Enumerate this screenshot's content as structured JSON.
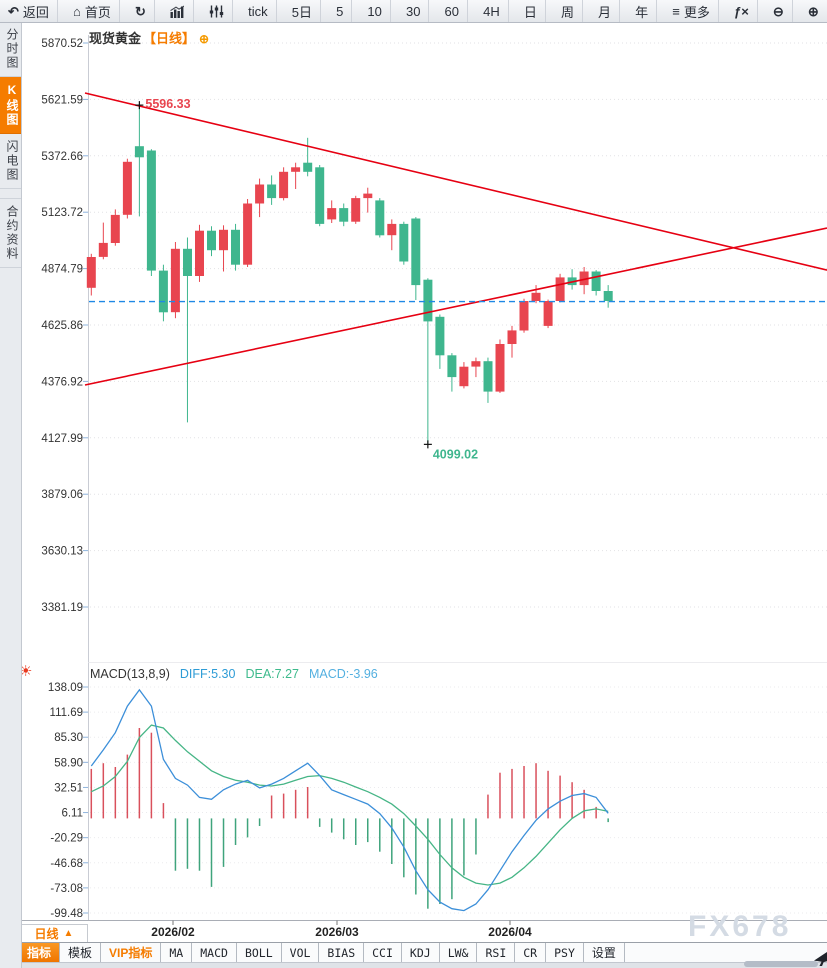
{
  "app": {
    "watermark": "FX678"
  },
  "top_toolbar": {
    "items": [
      {
        "name": "back",
        "icon": "back-arrow",
        "label": "返回"
      },
      {
        "name": "home",
        "icon": "home",
        "label": "首页"
      },
      {
        "name": "refresh",
        "icon": "refresh",
        "label": ""
      },
      {
        "name": "chart-type-bars",
        "icon": "bar-chart",
        "label": ""
      },
      {
        "name": "chart-type-candles",
        "icon": "candles",
        "label": ""
      },
      {
        "name": "interval-tick",
        "icon": "",
        "label": "tick"
      },
      {
        "name": "interval-5d",
        "icon": "",
        "label": "5日"
      },
      {
        "name": "interval-5",
        "icon": "",
        "label": "5"
      },
      {
        "name": "interval-10",
        "icon": "",
        "label": "10"
      },
      {
        "name": "interval-30",
        "icon": "",
        "label": "30"
      },
      {
        "name": "interval-60",
        "icon": "",
        "label": "60"
      },
      {
        "name": "interval-4h",
        "icon": "",
        "label": "4H"
      },
      {
        "name": "interval-day",
        "icon": "",
        "label": "日"
      },
      {
        "name": "interval-week",
        "icon": "",
        "label": "周"
      },
      {
        "name": "interval-month",
        "icon": "",
        "label": "月"
      },
      {
        "name": "interval-year",
        "icon": "",
        "label": "年"
      },
      {
        "name": "more",
        "icon": "more",
        "label": "更多"
      },
      {
        "name": "fx-functions",
        "icon": "fx",
        "label": ""
      },
      {
        "name": "zoom-out",
        "icon": "zoom-out",
        "label": ""
      },
      {
        "name": "zoom-in",
        "icon": "zoom-in",
        "label": ""
      }
    ]
  },
  "sidebar": {
    "items": [
      {
        "id": "time-share-chart",
        "label": "分时图",
        "active": false
      },
      {
        "id": "kline-chart",
        "label": "K线图",
        "active": true
      },
      {
        "id": "lightning-chart",
        "label": "闪电图",
        "active": false
      },
      {
        "id": "contract-info",
        "label": "合约资料",
        "active": false,
        "gap": true
      }
    ]
  },
  "chart_header": {
    "title": "现货黄金",
    "period_tag": "【日线】",
    "add_icon": "circle-plus"
  },
  "macd_header": {
    "name": "MACD(13,8,9)",
    "diff": "DIFF:5.30",
    "dea": "DEA:7.27",
    "macd": "MACD:-3.96"
  },
  "bottom_bar": {
    "period_selector": {
      "label": "日线",
      "icon": "triangle-up"
    },
    "tabs": [
      {
        "label": "指标",
        "active": true
      },
      {
        "label": "模板"
      },
      {
        "label": "VIP指标",
        "vip": true
      },
      {
        "label": "MA",
        "mono": true
      },
      {
        "label": "MACD",
        "mono": true
      },
      {
        "label": "BOLL",
        "mono": true
      },
      {
        "label": "VOL",
        "mono": true
      },
      {
        "label": "BIAS",
        "mono": true
      },
      {
        "label": "CCI",
        "mono": true
      },
      {
        "label": "KDJ",
        "mono": true
      },
      {
        "label": "LW&",
        "mono": true
      },
      {
        "label": "RSI",
        "mono": true
      },
      {
        "label": "CR",
        "mono": true
      },
      {
        "label": "PSY",
        "mono": true
      },
      {
        "label": "设置"
      }
    ]
  },
  "chart_data": [
    {
      "type": "candlestick",
      "title": "现货黄金 日线",
      "y_ticks": [
        "5870.52",
        "5621.59",
        "5372.66",
        "5123.72",
        "4874.79",
        "4625.86",
        "4376.92",
        "4127.99",
        "3879.06",
        "3630.13",
        "3381.19"
      ],
      "x_labels": [
        {
          "text": "2026/02",
          "x": 173
        },
        {
          "text": "2026/03",
          "x": 337
        },
        {
          "text": "2026/04",
          "x": 510
        }
      ],
      "candles_ohlc": [
        [
          4790,
          4940,
          4756,
          4926
        ],
        [
          4926,
          5078,
          4916,
          4988
        ],
        [
          4988,
          5136,
          4976,
          5112
        ],
        [
          5112,
          5360,
          5096,
          5346
        ],
        [
          5415,
          5596.33,
          5105,
          5366
        ],
        [
          5396,
          5402,
          4842,
          4866
        ],
        [
          4866,
          4892,
          4642,
          4682
        ],
        [
          4682,
          4992,
          4656,
          4962
        ],
        [
          4962,
          5012,
          4196,
          4842
        ],
        [
          4842,
          5068,
          4816,
          5042
        ],
        [
          5042,
          5062,
          4930,
          4956
        ],
        [
          4956,
          5066,
          4862,
          5046
        ],
        [
          5046,
          5072,
          4866,
          4892
        ],
        [
          4892,
          5182,
          4882,
          5162
        ],
        [
          5162,
          5272,
          5102,
          5246
        ],
        [
          5246,
          5286,
          5156,
          5186
        ],
        [
          5186,
          5322,
          5176,
          5302
        ],
        [
          5302,
          5342,
          5226,
          5322
        ],
        [
          5342,
          5452,
          5282,
          5302
        ],
        [
          5322,
          5332,
          5062,
          5072
        ],
        [
          5092,
          5176,
          5076,
          5142
        ],
        [
          5142,
          5162,
          5062,
          5082
        ],
        [
          5082,
          5196,
          5072,
          5186
        ],
        [
          5186,
          5232,
          5122,
          5206
        ],
        [
          5176,
          5186,
          5012,
          5022
        ],
        [
          5022,
          5092,
          4956,
          5072
        ],
        [
          5072,
          5082,
          4892,
          4906
        ],
        [
          5096,
          5102,
          4736,
          4802
        ],
        [
          4826,
          4832,
          4099.02,
          4642
        ],
        [
          4662,
          4672,
          4432,
          4492
        ],
        [
          4492,
          4502,
          4332,
          4396
        ],
        [
          4356,
          4462,
          4346,
          4442
        ],
        [
          4442,
          4482,
          4396,
          4466
        ],
        [
          4466,
          4482,
          4282,
          4332
        ],
        [
          4332,
          4562,
          4326,
          4542
        ],
        [
          4542,
          4622,
          4482,
          4602
        ],
        [
          4602,
          4742,
          4592,
          4732
        ],
        [
          4732,
          4802,
          4722,
          4768
        ],
        [
          4622,
          4738,
          4612,
          4732
        ],
        [
          4732,
          4852,
          4726,
          4836
        ],
        [
          4836,
          4872,
          4782,
          4802
        ],
        [
          4802,
          4882,
          4762,
          4862
        ],
        [
          4862,
          4868,
          4756,
          4776
        ],
        [
          4776,
          4802,
          4702,
          4732
        ]
      ],
      "high_annotation": {
        "text": "5596.33",
        "index": 4
      },
      "low_annotation": {
        "text": "4099.02",
        "index": 28
      },
      "current_price_line": 4729,
      "trend_lines": [
        {
          "from_price": 5650,
          "to_price": 4868
        },
        {
          "from_price": 4361,
          "to_price": 5054
        }
      ],
      "colors": {
        "up": "#e8454f",
        "down": "#3fb68e",
        "trend": "#e60012",
        "price_line": "#1e88e5"
      }
    },
    {
      "type": "macd",
      "params": "(13,8,9)",
      "y_ticks": [
        "138.09",
        "111.69",
        "85.30",
        "58.90",
        "32.51",
        "6.11",
        "-20.29",
        "-46.68",
        "-73.08",
        "-99.48"
      ],
      "diff": [
        55,
        72,
        90,
        118,
        135,
        118,
        62,
        42,
        35,
        22,
        20,
        30,
        36,
        40,
        32,
        36,
        42,
        50,
        58,
        45,
        30,
        25,
        20,
        15,
        5,
        -10,
        -30,
        -55,
        -75,
        -88,
        -95,
        -97,
        -90,
        -75,
        -55,
        -35,
        -18,
        -2,
        10,
        18,
        24,
        26,
        22,
        5.3
      ],
      "dea": [
        28,
        34,
        44,
        60,
        85,
        98,
        95,
        82,
        70,
        60,
        50,
        44,
        40,
        38,
        35,
        34,
        36,
        40,
        44,
        45,
        42,
        38,
        33,
        28,
        22,
        15,
        5,
        -8,
        -22,
        -38,
        -52,
        -62,
        -68,
        -70,
        -68,
        -62,
        -52,
        -40,
        -26,
        -12,
        0,
        8,
        10,
        7.27
      ],
      "histogram": [
        52,
        58,
        54,
        67,
        95,
        90,
        16,
        -55,
        -53,
        -55,
        -72,
        -51,
        -28,
        -20,
        -8,
        24,
        26,
        30,
        33,
        -9,
        -15,
        -22,
        -28,
        -25,
        -35,
        -48,
        -62,
        -80,
        -95,
        -90,
        -85,
        -60,
        -38,
        25,
        48,
        52,
        55,
        58,
        50,
        45,
        38,
        30,
        12,
        -3.96
      ],
      "colors": {
        "diff": "#3c8fd9",
        "dea": "#46b586",
        "hist_up": "#d9505c",
        "hist_down": "#3fa47c",
        "label_diff": "#2e9cd6",
        "label_dea": "#3dba8c",
        "label_macd": "#54b0e0"
      }
    }
  ]
}
